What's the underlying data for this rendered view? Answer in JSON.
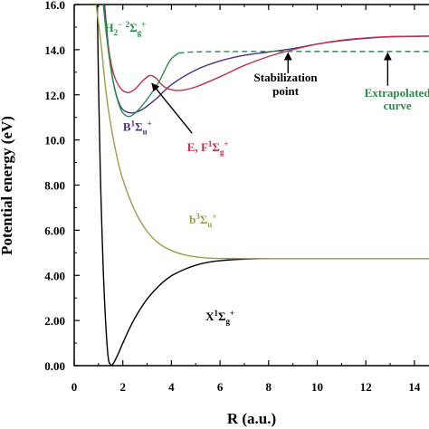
{
  "chart_data": {
    "type": "line",
    "xlabel": "R (a.u.)",
    "ylabel": "Potential energy (eV)",
    "xlim": [
      0,
      14.6
    ],
    "ylim": [
      0,
      16
    ],
    "x_ticks": [
      0,
      2,
      4,
      6,
      8,
      10,
      12,
      14
    ],
    "y_ticks": [
      0,
      2,
      4,
      6,
      8,
      10,
      12,
      14,
      16
    ],
    "x_tick_labels": [
      "0",
      "2",
      "4",
      "6",
      "8",
      "10",
      "12",
      "14"
    ],
    "y_tick_labels": [
      "0.00",
      "2.00",
      "4.00",
      "6.00",
      "8.00",
      "10.0",
      "12.0",
      "14.0",
      "16.0"
    ],
    "grid": false,
    "series": [
      {
        "name": "X ¹Σg⁺",
        "color": "#000000",
        "dash": false,
        "points": [
          [
            0.95,
            16
          ],
          [
            1.0,
            12.5
          ],
          [
            1.05,
            9.8
          ],
          [
            1.1,
            7.5
          ],
          [
            1.2,
            4.1
          ],
          [
            1.3,
            1.8
          ],
          [
            1.4,
            0.35
          ],
          [
            1.5,
            0.05
          ],
          [
            1.6,
            0.08
          ],
          [
            1.8,
            0.5
          ],
          [
            2.0,
            1.0
          ],
          [
            2.3,
            1.7
          ],
          [
            2.6,
            2.3
          ],
          [
            3.0,
            2.95
          ],
          [
            3.5,
            3.55
          ],
          [
            4.0,
            3.98
          ],
          [
            4.5,
            4.25
          ],
          [
            5.0,
            4.45
          ],
          [
            5.5,
            4.58
          ],
          [
            6.0,
            4.65
          ],
          [
            7.0,
            4.72
          ],
          [
            8.0,
            4.74
          ]
        ]
      },
      {
        "name": "b ³Σu⁺",
        "color": "#a09a48",
        "dash": false,
        "points": [
          [
            0.9,
            16
          ],
          [
            1.1,
            14.3
          ],
          [
            1.3,
            12.2
          ],
          [
            1.5,
            10.7
          ],
          [
            1.75,
            9.3
          ],
          [
            2.0,
            8.25
          ],
          [
            2.5,
            6.85
          ],
          [
            3.0,
            5.95
          ],
          [
            3.5,
            5.4
          ],
          [
            4.0,
            5.1
          ],
          [
            4.5,
            4.92
          ],
          [
            5.0,
            4.82
          ],
          [
            5.5,
            4.77
          ],
          [
            6.0,
            4.75
          ],
          [
            8.0,
            4.74
          ],
          [
            10.0,
            4.74
          ],
          [
            14.6,
            4.74
          ]
        ]
      },
      {
        "name": "B ¹Σu⁺",
        "color": "#4a2f8a",
        "dash": false,
        "points": [
          [
            1.25,
            16
          ],
          [
            1.4,
            14.2
          ],
          [
            1.6,
            12.6
          ],
          [
            1.9,
            11.5
          ],
          [
            2.3,
            11.2
          ],
          [
            2.8,
            11.35
          ],
          [
            3.4,
            11.85
          ],
          [
            4.0,
            12.45
          ],
          [
            5.0,
            13.1
          ],
          [
            6.0,
            13.5
          ],
          [
            7.0,
            13.75
          ],
          [
            8.0,
            13.9
          ],
          [
            9.0,
            14.05
          ],
          [
            10.0,
            14.25
          ],
          [
            11.0,
            14.4
          ],
          [
            12.0,
            14.5
          ],
          [
            13.0,
            14.57
          ],
          [
            14.6,
            14.6
          ]
        ]
      },
      {
        "name": "E, F ¹Σg⁺",
        "color": "#c0304a",
        "dash": false,
        "points": [
          [
            1.2,
            16
          ],
          [
            1.35,
            14.5
          ],
          [
            1.6,
            13.0
          ],
          [
            1.9,
            12.3
          ],
          [
            2.2,
            12.1
          ],
          [
            2.5,
            12.25
          ],
          [
            2.8,
            12.6
          ],
          [
            3.1,
            12.85
          ],
          [
            3.35,
            12.75
          ],
          [
            3.6,
            12.45
          ],
          [
            3.9,
            12.25
          ],
          [
            4.4,
            12.2
          ],
          [
            5.0,
            12.35
          ],
          [
            6.0,
            12.8
          ],
          [
            7.0,
            13.3
          ],
          [
            8.0,
            13.7
          ],
          [
            9.0,
            14.0
          ],
          [
            10.0,
            14.25
          ],
          [
            11.0,
            14.42
          ],
          [
            12.0,
            14.52
          ],
          [
            13.0,
            14.58
          ],
          [
            14.6,
            14.6
          ]
        ]
      },
      {
        "name": "H₂⁻ ²Σg⁺",
        "color": "#2a8a4a",
        "dash": false,
        "points": [
          [
            1.2,
            16
          ],
          [
            1.4,
            14.0
          ],
          [
            1.6,
            12.6
          ],
          [
            1.8,
            11.7
          ],
          [
            2.0,
            11.2
          ],
          [
            2.3,
            11.05
          ],
          [
            2.7,
            11.4
          ],
          [
            3.1,
            11.95
          ],
          [
            3.5,
            12.6
          ],
          [
            3.8,
            13.25
          ],
          [
            4.0,
            13.6
          ],
          [
            4.3,
            13.85
          ]
        ]
      },
      {
        "name": "H₂⁻ extrapolated",
        "color": "#2a8a4a",
        "dash": true,
        "points": [
          [
            4.3,
            13.85
          ],
          [
            5.0,
            13.9
          ],
          [
            7.0,
            13.92
          ],
          [
            10.0,
            13.92
          ],
          [
            14.6,
            13.92
          ]
        ]
      }
    ],
    "annotations": [
      {
        "id": "x",
        "parts": [
          {
            "t": "X"
          },
          {
            "t": "1",
            "sup": true
          },
          {
            "t": "Σ"
          },
          {
            "t": "g",
            "sub": true
          },
          {
            "t": "+",
            "sup": true
          }
        ],
        "color": "#000000",
        "x": 6.0,
        "y": 2.0
      },
      {
        "id": "b",
        "parts": [
          {
            "t": "b"
          },
          {
            "t": "3",
            "sup": true
          },
          {
            "t": "Σ"
          },
          {
            "t": "u",
            "sub": true
          },
          {
            "t": "+",
            "sup": true
          }
        ],
        "color": "#a09a48",
        "x": 5.3,
        "y": 6.3
      },
      {
        "id": "bsinglet",
        "parts": [
          {
            "t": "B"
          },
          {
            "t": "1",
            "sup": true
          },
          {
            "t": "Σ"
          },
          {
            "t": "u",
            "sub": true
          },
          {
            "t": "+",
            "sup": true
          }
        ],
        "color": "#4a2f8a",
        "x": 2.6,
        "y": 10.4
      },
      {
        "id": "ef",
        "parts": [
          {
            "t": "E, F"
          },
          {
            "t": "1",
            "sup": true
          },
          {
            "t": "Σ"
          },
          {
            "t": "g",
            "sub": true
          },
          {
            "t": "+",
            "sup": true
          }
        ],
        "color": "#c0304a",
        "x": 5.5,
        "y": 9.5
      },
      {
        "id": "h2m",
        "parts": [
          {
            "t": "H"
          },
          {
            "t": "2",
            "sub": true
          },
          {
            "t": "−",
            "sup": true
          },
          {
            "t": " "
          },
          {
            "t": "2",
            "sup": true
          },
          {
            "t": "Σ"
          },
          {
            "t": "g",
            "sub": true
          },
          {
            "t": "+",
            "sup": true
          }
        ],
        "color": "#2a8a4a",
        "x": 2.1,
        "y": 14.8
      },
      {
        "id": "stab1",
        "parts": [
          {
            "t": "Stabilization"
          }
        ],
        "color": "#000000",
        "x": 8.7,
        "y": 12.6
      },
      {
        "id": "stab2",
        "parts": [
          {
            "t": "point"
          }
        ],
        "color": "#000000",
        "x": 8.7,
        "y": 12.0
      },
      {
        "id": "extra1",
        "parts": [
          {
            "t": "Extrapolated"
          }
        ],
        "color": "#2a8a4a",
        "x": 13.3,
        "y": 11.9
      },
      {
        "id": "extra2",
        "parts": [
          {
            "t": "curve"
          }
        ],
        "color": "#2a8a4a",
        "x": 13.3,
        "y": 11.35
      }
    ],
    "arrows": [
      {
        "id": "arrow-ef",
        "color": "#000000",
        "from": [
          4.85,
          10.3
        ],
        "to": [
          3.2,
          12.5
        ]
      },
      {
        "id": "arrow-stabilization",
        "color": "#000000",
        "from": [
          8.8,
          12.95
        ],
        "to": [
          8.8,
          13.85
        ]
      },
      {
        "id": "arrow-extrapolated",
        "color": "#000000",
        "from": [
          12.9,
          12.4
        ],
        "to": [
          12.9,
          13.85
        ]
      }
    ]
  }
}
